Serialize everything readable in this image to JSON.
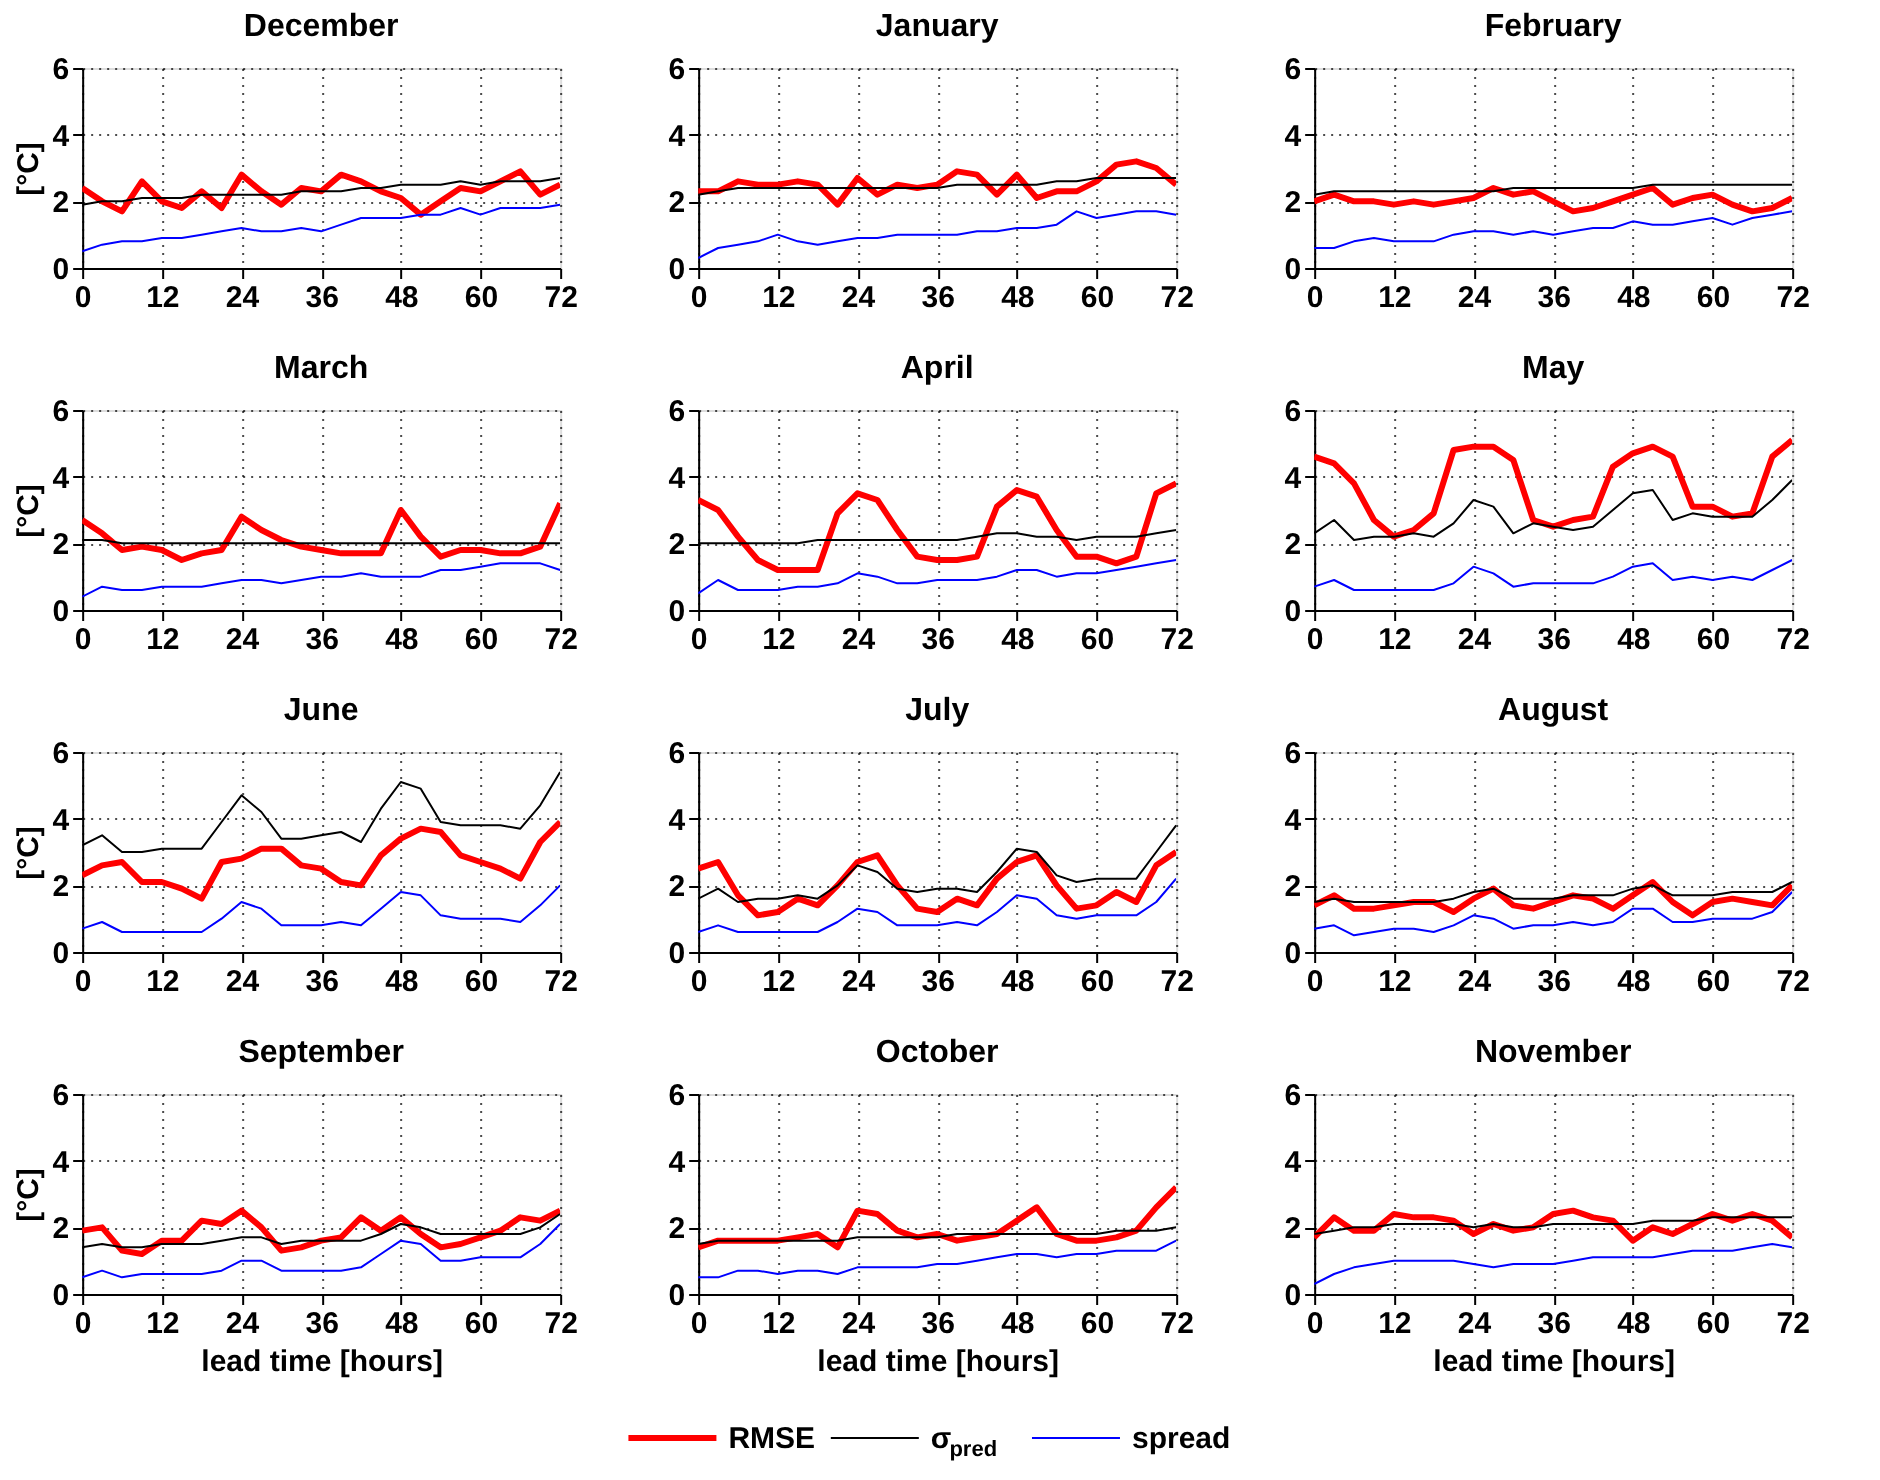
{
  "chart_data": [
    {
      "type": "line",
      "title": "December",
      "ylabel": "[°C]",
      "legend": "bottom",
      "x": [
        0,
        3,
        6,
        9,
        12,
        15,
        18,
        21,
        24,
        27,
        30,
        33,
        36,
        39,
        42,
        45,
        48,
        51,
        54,
        57,
        60,
        63,
        66,
        69,
        72
      ],
      "xlim": [
        0,
        72
      ],
      "xticks": [
        0,
        12,
        24,
        36,
        48,
        60,
        72
      ],
      "ylim": [
        0,
        6
      ],
      "yticks": [
        0,
        2,
        4,
        6
      ],
      "grid": true,
      "line_style": "solid",
      "series": [
        {
          "name": "RMSE",
          "color": "#ff0000",
          "values": [
            2.4,
            2.0,
            1.7,
            2.6,
            2.0,
            1.8,
            2.3,
            1.8,
            2.8,
            2.3,
            1.9,
            2.4,
            2.3,
            2.8,
            2.6,
            2.3,
            2.1,
            1.6,
            2.0,
            2.4,
            2.3,
            2.6,
            2.9,
            2.2,
            2.5
          ]
        },
        {
          "name": "σ$_{pred}$",
          "color": "#000000",
          "values": [
            1.9,
            2.0,
            2.0,
            2.1,
            2.1,
            2.1,
            2.2,
            2.2,
            2.2,
            2.2,
            2.2,
            2.3,
            2.3,
            2.3,
            2.4,
            2.4,
            2.5,
            2.5,
            2.5,
            2.6,
            2.5,
            2.6,
            2.6,
            2.6,
            2.7
          ]
        },
        {
          "name": "spread",
          "color": "#0000ff",
          "values": [
            0.5,
            0.7,
            0.8,
            0.8,
            0.9,
            0.9,
            1.0,
            1.1,
            1.2,
            1.1,
            1.1,
            1.2,
            1.1,
            1.3,
            1.5,
            1.5,
            1.5,
            1.6,
            1.6,
            1.8,
            1.6,
            1.8,
            1.8,
            1.8,
            1.9
          ]
        }
      ]
    },
    {
      "type": "line",
      "title": "January",
      "legend": "bottom",
      "x": [
        0,
        3,
        6,
        9,
        12,
        15,
        18,
        21,
        24,
        27,
        30,
        33,
        36,
        39,
        42,
        45,
        48,
        51,
        54,
        57,
        60,
        63,
        66,
        69,
        72
      ],
      "xlim": [
        0,
        72
      ],
      "xticks": [
        0,
        12,
        24,
        36,
        48,
        60,
        72
      ],
      "ylim": [
        0,
        6
      ],
      "yticks": [
        0,
        2,
        4,
        6
      ],
      "grid": true,
      "line_style": "solid",
      "series": [
        {
          "name": "RMSE",
          "color": "#ff0000",
          "values": [
            2.3,
            2.3,
            2.6,
            2.5,
            2.5,
            2.6,
            2.5,
            1.9,
            2.7,
            2.2,
            2.5,
            2.4,
            2.5,
            2.9,
            2.8,
            2.2,
            2.8,
            2.1,
            2.3,
            2.3,
            2.6,
            3.1,
            3.2,
            3.0,
            2.5
          ]
        },
        {
          "name": "σ$_{pred}$",
          "color": "#000000",
          "values": [
            2.2,
            2.3,
            2.4,
            2.4,
            2.4,
            2.4,
            2.4,
            2.4,
            2.4,
            2.4,
            2.4,
            2.4,
            2.4,
            2.5,
            2.5,
            2.5,
            2.5,
            2.5,
            2.6,
            2.6,
            2.7,
            2.7,
            2.7,
            2.7,
            2.7
          ]
        },
        {
          "name": "spread",
          "color": "#0000ff",
          "values": [
            0.3,
            0.6,
            0.7,
            0.8,
            1.0,
            0.8,
            0.7,
            0.8,
            0.9,
            0.9,
            1.0,
            1.0,
            1.0,
            1.0,
            1.1,
            1.1,
            1.2,
            1.2,
            1.3,
            1.7,
            1.5,
            1.6,
            1.7,
            1.7,
            1.6
          ]
        }
      ]
    },
    {
      "type": "line",
      "title": "February",
      "legend": "bottom",
      "x": [
        0,
        3,
        6,
        9,
        12,
        15,
        18,
        21,
        24,
        27,
        30,
        33,
        36,
        39,
        42,
        45,
        48,
        51,
        54,
        57,
        60,
        63,
        66,
        69,
        72
      ],
      "xlim": [
        0,
        72
      ],
      "xticks": [
        0,
        12,
        24,
        36,
        48,
        60,
        72
      ],
      "ylim": [
        0,
        6
      ],
      "yticks": [
        0,
        2,
        4,
        6
      ],
      "grid": true,
      "line_style": "solid",
      "series": [
        {
          "name": "RMSE",
          "color": "#ff0000",
          "values": [
            2.0,
            2.2,
            2.0,
            2.0,
            1.9,
            2.0,
            1.9,
            2.0,
            2.1,
            2.4,
            2.2,
            2.3,
            2.0,
            1.7,
            1.8,
            2.0,
            2.2,
            2.4,
            1.9,
            2.1,
            2.2,
            1.9,
            1.7,
            1.8,
            2.1
          ]
        },
        {
          "name": "σ$_{pred}$",
          "color": "#000000",
          "values": [
            2.2,
            2.3,
            2.3,
            2.3,
            2.3,
            2.3,
            2.3,
            2.3,
            2.3,
            2.3,
            2.4,
            2.4,
            2.4,
            2.4,
            2.4,
            2.4,
            2.4,
            2.5,
            2.5,
            2.5,
            2.5,
            2.5,
            2.5,
            2.5,
            2.5
          ]
        },
        {
          "name": "spread",
          "color": "#0000ff",
          "values": [
            0.6,
            0.6,
            0.8,
            0.9,
            0.8,
            0.8,
            0.8,
            1.0,
            1.1,
            1.1,
            1.0,
            1.1,
            1.0,
            1.1,
            1.2,
            1.2,
            1.4,
            1.3,
            1.3,
            1.4,
            1.5,
            1.3,
            1.5,
            1.6,
            1.7
          ]
        }
      ]
    },
    {
      "type": "line",
      "title": "March",
      "ylabel": "[°C]",
      "legend": "bottom",
      "x": [
        0,
        3,
        6,
        9,
        12,
        15,
        18,
        21,
        24,
        27,
        30,
        33,
        36,
        39,
        42,
        45,
        48,
        51,
        54,
        57,
        60,
        63,
        66,
        69,
        72
      ],
      "xlim": [
        0,
        72
      ],
      "xticks": [
        0,
        12,
        24,
        36,
        48,
        60,
        72
      ],
      "ylim": [
        0,
        6
      ],
      "yticks": [
        0,
        2,
        4,
        6
      ],
      "grid": true,
      "line_style": "solid",
      "series": [
        {
          "name": "RMSE",
          "color": "#ff0000",
          "values": [
            2.7,
            2.3,
            1.8,
            1.9,
            1.8,
            1.5,
            1.7,
            1.8,
            2.8,
            2.4,
            2.1,
            1.9,
            1.8,
            1.7,
            1.7,
            1.7,
            3.0,
            2.2,
            1.6,
            1.8,
            1.8,
            1.7,
            1.7,
            1.9,
            3.2
          ]
        },
        {
          "name": "σ$_{pred}$",
          "color": "#000000",
          "values": [
            2.1,
            2.1,
            2.0,
            2.0,
            2.0,
            2.0,
            2.0,
            2.0,
            2.0,
            2.0,
            2.0,
            2.0,
            2.0,
            2.0,
            2.0,
            2.0,
            2.0,
            2.0,
            2.0,
            2.0,
            2.0,
            2.0,
            2.0,
            2.0,
            2.0
          ]
        },
        {
          "name": "spread",
          "color": "#0000ff",
          "values": [
            0.4,
            0.7,
            0.6,
            0.6,
            0.7,
            0.7,
            0.7,
            0.8,
            0.9,
            0.9,
            0.8,
            0.9,
            1.0,
            1.0,
            1.1,
            1.0,
            1.0,
            1.0,
            1.2,
            1.2,
            1.3,
            1.4,
            1.4,
            1.4,
            1.2
          ]
        }
      ]
    },
    {
      "type": "line",
      "title": "April",
      "legend": "bottom",
      "x": [
        0,
        3,
        6,
        9,
        12,
        15,
        18,
        21,
        24,
        27,
        30,
        33,
        36,
        39,
        42,
        45,
        48,
        51,
        54,
        57,
        60,
        63,
        66,
        69,
        72
      ],
      "xlim": [
        0,
        72
      ],
      "xticks": [
        0,
        12,
        24,
        36,
        48,
        60,
        72
      ],
      "ylim": [
        0,
        6
      ],
      "yticks": [
        0,
        2,
        4,
        6
      ],
      "grid": true,
      "line_style": "solid",
      "series": [
        {
          "name": "RMSE",
          "color": "#ff0000",
          "values": [
            3.3,
            3.0,
            2.2,
            1.5,
            1.2,
            1.2,
            1.2,
            2.9,
            3.5,
            3.3,
            2.4,
            1.6,
            1.5,
            1.5,
            1.6,
            3.1,
            3.6,
            3.4,
            2.4,
            1.6,
            1.6,
            1.4,
            1.6,
            3.5,
            3.8
          ]
        },
        {
          "name": "σ$_{pred}$",
          "color": "#000000",
          "values": [
            2.0,
            2.0,
            2.0,
            2.0,
            2.0,
            2.0,
            2.1,
            2.1,
            2.1,
            2.1,
            2.1,
            2.1,
            2.1,
            2.1,
            2.2,
            2.3,
            2.3,
            2.2,
            2.2,
            2.1,
            2.2,
            2.2,
            2.2,
            2.3,
            2.4
          ]
        },
        {
          "name": "spread",
          "color": "#0000ff",
          "values": [
            0.5,
            0.9,
            0.6,
            0.6,
            0.6,
            0.7,
            0.7,
            0.8,
            1.1,
            1.0,
            0.8,
            0.8,
            0.9,
            0.9,
            0.9,
            1.0,
            1.2,
            1.2,
            1.0,
            1.1,
            1.1,
            1.2,
            1.3,
            1.4,
            1.5
          ]
        }
      ]
    },
    {
      "type": "line",
      "title": "May",
      "legend": "bottom",
      "x": [
        0,
        3,
        6,
        9,
        12,
        15,
        18,
        21,
        24,
        27,
        30,
        33,
        36,
        39,
        42,
        45,
        48,
        51,
        54,
        57,
        60,
        63,
        66,
        69,
        72
      ],
      "xlim": [
        0,
        72
      ],
      "xticks": [
        0,
        12,
        24,
        36,
        48,
        60,
        72
      ],
      "ylim": [
        0,
        6
      ],
      "yticks": [
        0,
        2,
        4,
        6
      ],
      "grid": true,
      "line_style": "solid",
      "series": [
        {
          "name": "RMSE",
          "color": "#ff0000",
          "values": [
            4.6,
            4.4,
            3.8,
            2.7,
            2.2,
            2.4,
            2.9,
            4.8,
            4.9,
            4.9,
            4.5,
            2.7,
            2.5,
            2.7,
            2.8,
            4.3,
            4.7,
            4.9,
            4.6,
            3.1,
            3.1,
            2.8,
            2.9,
            4.6,
            5.1
          ]
        },
        {
          "name": "σ$_{pred}$",
          "color": "#000000",
          "values": [
            2.3,
            2.7,
            2.1,
            2.2,
            2.2,
            2.3,
            2.2,
            2.6,
            3.3,
            3.1,
            2.3,
            2.6,
            2.5,
            2.4,
            2.5,
            3.0,
            3.5,
            3.6,
            2.7,
            2.9,
            2.8,
            2.8,
            2.8,
            3.3,
            3.9
          ]
        },
        {
          "name": "spread",
          "color": "#0000ff",
          "values": [
            0.7,
            0.9,
            0.6,
            0.6,
            0.6,
            0.6,
            0.6,
            0.8,
            1.3,
            1.1,
            0.7,
            0.8,
            0.8,
            0.8,
            0.8,
            1.0,
            1.3,
            1.4,
            0.9,
            1.0,
            0.9,
            1.0,
            0.9,
            1.2,
            1.5
          ]
        }
      ]
    },
    {
      "type": "line",
      "title": "June",
      "ylabel": "[°C]",
      "legend": "bottom",
      "x": [
        0,
        3,
        6,
        9,
        12,
        15,
        18,
        21,
        24,
        27,
        30,
        33,
        36,
        39,
        42,
        45,
        48,
        51,
        54,
        57,
        60,
        63,
        66,
        69,
        72
      ],
      "xlim": [
        0,
        72
      ],
      "xticks": [
        0,
        12,
        24,
        36,
        48,
        60,
        72
      ],
      "ylim": [
        0,
        6
      ],
      "yticks": [
        0,
        2,
        4,
        6
      ],
      "grid": true,
      "line_style": "solid",
      "series": [
        {
          "name": "RMSE",
          "color": "#ff0000",
          "values": [
            2.3,
            2.6,
            2.7,
            2.1,
            2.1,
            1.9,
            1.6,
            2.7,
            2.8,
            3.1,
            3.1,
            2.6,
            2.5,
            2.1,
            2.0,
            2.9,
            3.4,
            3.7,
            3.6,
            2.9,
            2.7,
            2.5,
            2.2,
            3.3,
            3.9
          ]
        },
        {
          "name": "σ$_{pred}$",
          "color": "#000000",
          "values": [
            3.2,
            3.5,
            3.0,
            3.0,
            3.1,
            3.1,
            3.1,
            3.9,
            4.7,
            4.2,
            3.4,
            3.4,
            3.5,
            3.6,
            3.3,
            4.3,
            5.1,
            4.9,
            3.9,
            3.8,
            3.8,
            3.8,
            3.7,
            4.4,
            5.4
          ]
        },
        {
          "name": "spread",
          "color": "#0000ff",
          "values": [
            0.7,
            0.9,
            0.6,
            0.6,
            0.6,
            0.6,
            0.6,
            1.0,
            1.5,
            1.3,
            0.8,
            0.8,
            0.8,
            0.9,
            0.8,
            1.3,
            1.8,
            1.7,
            1.1,
            1.0,
            1.0,
            1.0,
            0.9,
            1.4,
            2.0
          ]
        }
      ]
    },
    {
      "type": "line",
      "title": "July",
      "legend": "bottom",
      "x": [
        0,
        3,
        6,
        9,
        12,
        15,
        18,
        21,
        24,
        27,
        30,
        33,
        36,
        39,
        42,
        45,
        48,
        51,
        54,
        57,
        60,
        63,
        66,
        69,
        72
      ],
      "xlim": [
        0,
        72
      ],
      "xticks": [
        0,
        12,
        24,
        36,
        48,
        60,
        72
      ],
      "ylim": [
        0,
        6
      ],
      "yticks": [
        0,
        2,
        4,
        6
      ],
      "grid": true,
      "line_style": "solid",
      "series": [
        {
          "name": "RMSE",
          "color": "#ff0000",
          "values": [
            2.5,
            2.7,
            1.7,
            1.1,
            1.2,
            1.6,
            1.4,
            2.0,
            2.7,
            2.9,
            2.0,
            1.3,
            1.2,
            1.6,
            1.4,
            2.2,
            2.7,
            2.9,
            2.0,
            1.3,
            1.4,
            1.8,
            1.5,
            2.6,
            3.0
          ]
        },
        {
          "name": "σ$_{pred}$",
          "color": "#000000",
          "values": [
            1.6,
            1.9,
            1.5,
            1.6,
            1.6,
            1.7,
            1.6,
            2.0,
            2.6,
            2.4,
            1.9,
            1.8,
            1.9,
            1.9,
            1.8,
            2.4,
            3.1,
            3.0,
            2.3,
            2.1,
            2.2,
            2.2,
            2.2,
            3.0,
            3.8
          ]
        },
        {
          "name": "spread",
          "color": "#0000ff",
          "values": [
            0.6,
            0.8,
            0.6,
            0.6,
            0.6,
            0.6,
            0.6,
            0.9,
            1.3,
            1.2,
            0.8,
            0.8,
            0.8,
            0.9,
            0.8,
            1.2,
            1.7,
            1.6,
            1.1,
            1.0,
            1.1,
            1.1,
            1.1,
            1.5,
            2.2
          ]
        }
      ]
    },
    {
      "type": "line",
      "title": "August",
      "legend": "bottom",
      "x": [
        0,
        3,
        6,
        9,
        12,
        15,
        18,
        21,
        24,
        27,
        30,
        33,
        36,
        39,
        42,
        45,
        48,
        51,
        54,
        57,
        60,
        63,
        66,
        69,
        72
      ],
      "xlim": [
        0,
        72
      ],
      "xticks": [
        0,
        12,
        24,
        36,
        48,
        60,
        72
      ],
      "ylim": [
        0,
        6
      ],
      "yticks": [
        0,
        2,
        4,
        6
      ],
      "grid": true,
      "line_style": "solid",
      "series": [
        {
          "name": "RMSE",
          "color": "#ff0000",
          "values": [
            1.4,
            1.7,
            1.3,
            1.3,
            1.4,
            1.5,
            1.5,
            1.2,
            1.6,
            1.9,
            1.4,
            1.3,
            1.5,
            1.7,
            1.6,
            1.3,
            1.7,
            2.1,
            1.5,
            1.1,
            1.5,
            1.6,
            1.5,
            1.4,
            2.0
          ]
        },
        {
          "name": "σ$_{pred}$",
          "color": "#000000",
          "values": [
            1.5,
            1.6,
            1.5,
            1.5,
            1.5,
            1.5,
            1.5,
            1.6,
            1.8,
            1.9,
            1.6,
            1.6,
            1.6,
            1.7,
            1.7,
            1.7,
            1.9,
            2.0,
            1.7,
            1.7,
            1.7,
            1.8,
            1.8,
            1.8,
            2.1
          ]
        },
        {
          "name": "spread",
          "color": "#0000ff",
          "values": [
            0.7,
            0.8,
            0.5,
            0.6,
            0.7,
            0.7,
            0.6,
            0.8,
            1.1,
            1.0,
            0.7,
            0.8,
            0.8,
            0.9,
            0.8,
            0.9,
            1.3,
            1.3,
            0.9,
            0.9,
            1.0,
            1.0,
            1.0,
            1.2,
            1.8
          ]
        }
      ]
    },
    {
      "type": "line",
      "title": "September",
      "legend": "bottom",
      "xlabel": "lead time [hours]",
      "ylabel": "[°C]",
      "x": [
        0,
        3,
        6,
        9,
        12,
        15,
        18,
        21,
        24,
        27,
        30,
        33,
        36,
        39,
        42,
        45,
        48,
        51,
        54,
        57,
        60,
        63,
        66,
        69,
        72
      ],
      "xlim": [
        0,
        72
      ],
      "xticks": [
        0,
        12,
        24,
        36,
        48,
        60,
        72
      ],
      "ylim": [
        0,
        6
      ],
      "yticks": [
        0,
        2,
        4,
        6
      ],
      "grid": true,
      "line_style": "solid",
      "series": [
        {
          "name": "RMSE",
          "color": "#ff0000",
          "values": [
            1.9,
            2.0,
            1.3,
            1.2,
            1.6,
            1.6,
            2.2,
            2.1,
            2.5,
            2.0,
            1.3,
            1.4,
            1.6,
            1.7,
            2.3,
            1.9,
            2.3,
            1.8,
            1.4,
            1.5,
            1.7,
            1.9,
            2.3,
            2.2,
            2.5
          ]
        },
        {
          "name": "σ$_{pred}$",
          "color": "#000000",
          "values": [
            1.4,
            1.5,
            1.4,
            1.4,
            1.5,
            1.5,
            1.5,
            1.6,
            1.7,
            1.7,
            1.5,
            1.6,
            1.6,
            1.6,
            1.6,
            1.8,
            2.1,
            2.0,
            1.8,
            1.8,
            1.8,
            1.8,
            1.8,
            2.0,
            2.4
          ]
        },
        {
          "name": "spread",
          "color": "#0000ff",
          "values": [
            0.5,
            0.7,
            0.5,
            0.6,
            0.6,
            0.6,
            0.6,
            0.7,
            1.0,
            1.0,
            0.7,
            0.7,
            0.7,
            0.7,
            0.8,
            1.2,
            1.6,
            1.5,
            1.0,
            1.0,
            1.1,
            1.1,
            1.1,
            1.5,
            2.1
          ]
        }
      ]
    },
    {
      "type": "line",
      "title": "October",
      "legend": "bottom",
      "xlabel": "lead time [hours]",
      "x": [
        0,
        3,
        6,
        9,
        12,
        15,
        18,
        21,
        24,
        27,
        30,
        33,
        36,
        39,
        42,
        45,
        48,
        51,
        54,
        57,
        60,
        63,
        66,
        69,
        72
      ],
      "xlim": [
        0,
        72
      ],
      "xticks": [
        0,
        12,
        24,
        36,
        48,
        60,
        72
      ],
      "ylim": [
        0,
        6
      ],
      "yticks": [
        0,
        2,
        4,
        6
      ],
      "grid": true,
      "line_style": "solid",
      "series": [
        {
          "name": "RMSE",
          "color": "#ff0000",
          "values": [
            1.4,
            1.6,
            1.6,
            1.6,
            1.6,
            1.7,
            1.8,
            1.4,
            2.5,
            2.4,
            1.9,
            1.7,
            1.8,
            1.6,
            1.7,
            1.8,
            2.2,
            2.6,
            1.8,
            1.6,
            1.6,
            1.7,
            1.9,
            2.6,
            3.2
          ]
        },
        {
          "name": "σ$_{pred}$",
          "color": "#000000",
          "values": [
            1.5,
            1.6,
            1.6,
            1.6,
            1.6,
            1.6,
            1.6,
            1.6,
            1.7,
            1.7,
            1.7,
            1.7,
            1.7,
            1.8,
            1.8,
            1.8,
            1.8,
            1.8,
            1.8,
            1.8,
            1.8,
            1.9,
            1.9,
            1.9,
            2.0
          ]
        },
        {
          "name": "spread",
          "color": "#0000ff",
          "values": [
            0.5,
            0.5,
            0.7,
            0.7,
            0.6,
            0.7,
            0.7,
            0.6,
            0.8,
            0.8,
            0.8,
            0.8,
            0.9,
            0.9,
            1.0,
            1.1,
            1.2,
            1.2,
            1.1,
            1.2,
            1.2,
            1.3,
            1.3,
            1.3,
            1.6
          ]
        }
      ]
    },
    {
      "type": "line",
      "title": "November",
      "xlabel": "lead time [hours]",
      "x": [
        0,
        3,
        6,
        9,
        12,
        15,
        18,
        21,
        24,
        27,
        30,
        33,
        36,
        39,
        42,
        45,
        48,
        51,
        54,
        57,
        60,
        63,
        66,
        69,
        72
      ],
      "xlim": [
        0,
        72
      ],
      "xticks": [
        0,
        12,
        24,
        36,
        48,
        60,
        72
      ],
      "ylim": [
        0,
        6
      ],
      "yticks": [
        0,
        2,
        4,
        6
      ],
      "grid": true,
      "line_style": "solid",
      "legend": "bottom",
      "series": [
        {
          "name": "RMSE",
          "color": "#ff0000",
          "values": [
            1.7,
            2.3,
            1.9,
            1.9,
            2.4,
            2.3,
            2.3,
            2.2,
            1.8,
            2.1,
            1.9,
            2.0,
            2.4,
            2.5,
            2.3,
            2.2,
            1.6,
            2.0,
            1.8,
            2.1,
            2.4,
            2.2,
            2.4,
            2.2,
            1.7
          ]
        },
        {
          "name": "σ$_{pred}$",
          "color": "#000000",
          "values": [
            1.8,
            1.9,
            2.0,
            2.0,
            2.1,
            2.1,
            2.1,
            2.1,
            2.0,
            2.1,
            2.0,
            2.0,
            2.1,
            2.1,
            2.1,
            2.1,
            2.1,
            2.2,
            2.2,
            2.2,
            2.3,
            2.3,
            2.3,
            2.3,
            2.3
          ]
        },
        {
          "name": "spread",
          "color": "#0000ff",
          "values": [
            0.3,
            0.6,
            0.8,
            0.9,
            1.0,
            1.0,
            1.0,
            1.0,
            0.9,
            0.8,
            0.9,
            0.9,
            0.9,
            1.0,
            1.1,
            1.1,
            1.1,
            1.1,
            1.2,
            1.3,
            1.3,
            1.3,
            1.4,
            1.5,
            1.4
          ]
        }
      ]
    }
  ]
}
